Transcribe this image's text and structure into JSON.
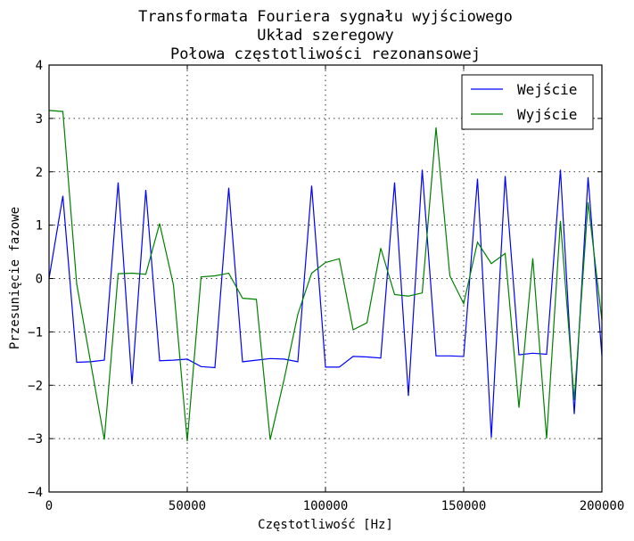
{
  "chart_data": {
    "type": "line",
    "title": [
      "Transformata Fouriera sygnału wyjściowego",
      "Układ szeregowy",
      "Połowa częstotliwości rezonansowej"
    ],
    "xlabel": "Częstotliwość [Hz]",
    "ylabel": "Przesunięcie fazowe",
    "xlim": [
      0,
      200000
    ],
    "ylim": [
      -4,
      4
    ],
    "xticks": [
      0,
      50000,
      100000,
      150000,
      200000
    ],
    "yticks": [
      -4,
      -3,
      -2,
      -1,
      0,
      1,
      2,
      3,
      4
    ],
    "xtick_labels": [
      "0",
      "50000",
      "100000",
      "150000",
      "200000"
    ],
    "ytick_labels": [
      "−4",
      "−3",
      "−2",
      "−1",
      "0",
      "1",
      "2",
      "3",
      "4"
    ],
    "grid": true,
    "legend_position": "top-right",
    "x": [
      0,
      5000,
      10000,
      15000,
      20000,
      25000,
      30000,
      35000,
      40000,
      45000,
      50000,
      55000,
      60000,
      65000,
      70000,
      75000,
      80000,
      85000,
      90000,
      95000,
      100000,
      105000,
      110000,
      115000,
      120000,
      125000,
      130000,
      135000,
      140000,
      145000,
      150000,
      155000,
      160000,
      165000,
      170000,
      175000,
      180000,
      185000,
      190000,
      195000,
      200000
    ],
    "series": [
      {
        "name": "Wejście",
        "color": "#0000ff",
        "values": [
          0.0,
          1.55,
          -1.57,
          -1.56,
          -1.53,
          1.8,
          -1.98,
          1.66,
          -1.54,
          -1.53,
          -1.51,
          -1.65,
          -1.67,
          1.7,
          -1.56,
          -1.53,
          -1.5,
          -1.51,
          -1.56,
          1.74,
          -1.66,
          -1.66,
          -1.46,
          -1.47,
          -1.49,
          1.8,
          -2.2,
          2.04,
          -1.45,
          -1.45,
          -1.46,
          1.87,
          -2.98,
          1.92,
          -1.43,
          -1.4,
          -1.42,
          2.04,
          -2.54,
          1.9,
          -1.45
        ]
      },
      {
        "name": "Wyjście",
        "color": "#008000",
        "values": [
          3.15,
          3.13,
          -0.1,
          -1.56,
          -3.02,
          0.09,
          0.1,
          0.08,
          1.03,
          -0.12,
          -3.05,
          0.03,
          0.05,
          0.1,
          -0.37,
          -0.39,
          -3.02,
          -1.9,
          -0.67,
          0.1,
          0.3,
          0.37,
          -0.96,
          -0.83,
          0.57,
          -0.3,
          -0.33,
          -0.27,
          2.83,
          0.05,
          -0.47,
          0.68,
          0.28,
          0.47,
          -2.42,
          0.38,
          -3.0,
          1.08,
          -2.28,
          1.43,
          -0.78
        ]
      }
    ]
  }
}
